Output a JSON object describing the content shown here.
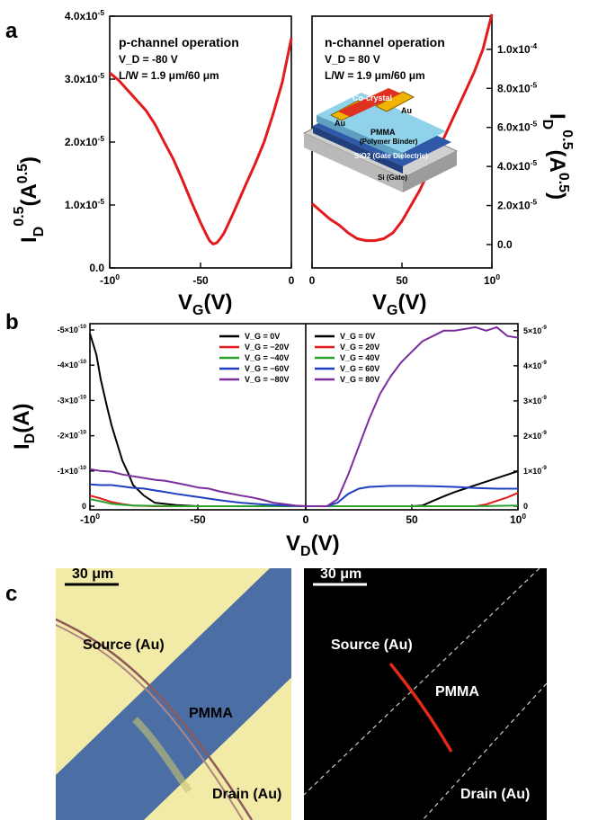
{
  "panels": {
    "a": "a",
    "b": "b",
    "c": "c"
  },
  "chart_data": [
    {
      "type": "line",
      "xlabel": "V_G (V)",
      "ylabel": "I_D^0.5 (A^0.5)",
      "xlim": [
        -100,
        0
      ],
      "ylim": [
        0,
        4e-05
      ],
      "x_ticks": [
        "-100",
        "-50",
        "0"
      ],
      "y_ticks": [
        "0.0",
        "1.0x10-5",
        "2.0x10-5",
        "3.0x10-5",
        "4.0x10-5"
      ],
      "title": "p-channel operation",
      "notes": [
        "V_D = -80 V",
        "L/W = 1.9 μm/60 μm"
      ],
      "color": "#e31a1c",
      "x": [
        -100,
        -95,
        -90,
        -85,
        -80,
        -75,
        -70,
        -65,
        -60,
        -55,
        -50,
        -47,
        -45,
        -43,
        -41,
        -39,
        -37,
        -35,
        -32,
        -30,
        -25,
        -20,
        -15,
        -10,
        -5,
        0
      ],
      "y": [
        3.1e-05,
        2.98e-05,
        2.82e-05,
        2.66e-05,
        2.5e-05,
        2.28e-05,
        2e-05,
        1.73e-05,
        1.4e-05,
        1.05e-05,
        7.2e-06,
        5.4e-06,
        4.3e-06,
        3.8e-06,
        4e-06,
        4.7e-06,
        5.6e-06,
        6.8e-06,
        8.7e-06,
        1e-05,
        1.33e-05,
        1.65e-05,
        2e-05,
        2.45e-05,
        2.95e-05,
        3.65e-05
      ]
    },
    {
      "type": "line",
      "xlabel": "V_G (V)",
      "ylabel": "I_D^0.5 (A^0.5)",
      "xlim": [
        0,
        100
      ],
      "ylim": [
        -1.2e-05,
        0.000117
      ],
      "x_ticks": [
        "0",
        "50",
        "100"
      ],
      "y_ticks": [
        "0.0",
        "2.0x10-5",
        "4.0x10-5",
        "6.0x10-5",
        "8.0x10-5",
        "1.0x10-4"
      ],
      "title": "n-channel operation",
      "notes": [
        "V_D = 80 V",
        "L/W = 1.9 μm/60 μm"
      ],
      "color": "#e31a1c",
      "x": [
        0,
        5,
        10,
        15,
        20,
        25,
        30,
        35,
        40,
        45,
        50,
        55,
        60,
        65,
        70,
        75,
        80,
        85,
        90,
        95,
        100
      ],
      "y": [
        2.1e-05,
        1.7e-05,
        1.3e-05,
        1e-05,
        6e-06,
        3e-06,
        2e-06,
        2e-06,
        3e-06,
        6e-06,
        1.2e-05,
        2e-05,
        2.8e-05,
        3.8e-05,
        4.8e-05,
        5.8e-05,
        6.8e-05,
        7.8e-05,
        8.8e-05,
        0.0001,
        0.000118
      ]
    },
    {
      "type": "line",
      "xlabel": "V_D (V)",
      "ylabel": "I_D (A)",
      "xlim": [
        -100,
        0
      ],
      "ylim": [
        0,
        -5e-10
      ],
      "x_ticks": [
        "-100",
        "-50",
        "0"
      ],
      "y_ticks": [
        "0",
        "-1×10-10",
        "-2×10-10",
        "-3×10-10",
        "-4×10-10",
        "-5×10-10"
      ],
      "legend": [
        "V_G = 0V",
        "V_G = −20V",
        "V_G = −40V",
        "V_G = −60V",
        "V_G = −80V"
      ],
      "series": [
        {
          "name": "V_G = 0V",
          "color": "#000000",
          "x": [
            -100,
            -97,
            -95,
            -92,
            -90,
            -87,
            -85,
            -82,
            -80,
            -75,
            -70,
            -60,
            -50,
            -30,
            0
          ],
          "y": [
            -4.9e-10,
            -4.3e-10,
            -3.6e-10,
            -2.8e-10,
            -2.3e-10,
            -1.7e-10,
            -1.3e-10,
            -9e-11,
            -6e-11,
            -3e-11,
            -1e-11,
            -3e-12,
            0,
            0,
            0
          ]
        },
        {
          "name": "V_G = −20V",
          "color": "#e31a1c",
          "x": [
            -100,
            -95,
            -90,
            -85,
            -80,
            -70,
            -60,
            -40,
            -20,
            0
          ],
          "y": [
            -3e-11,
            -2.2e-11,
            -1.2e-11,
            -6e-12,
            -2e-12,
            0,
            0,
            0,
            0,
            0
          ]
        },
        {
          "name": "V_G = −40V",
          "color": "#2ca02c",
          "x": [
            -100,
            -95,
            -90,
            -85,
            -80,
            -60,
            -40,
            -20,
            0
          ],
          "y": [
            -2e-11,
            -1.4e-11,
            -7e-12,
            -4e-12,
            -2e-12,
            0,
            0,
            0,
            0
          ]
        },
        {
          "name": "V_G = −60V",
          "color": "#1f3fbf",
          "x": [
            -100,
            -95,
            -90,
            -85,
            -80,
            -75,
            -70,
            -65,
            -60,
            -50,
            -40,
            -30,
            -20,
            -10,
            0
          ],
          "y": [
            -6.2e-11,
            -6e-11,
            -6e-11,
            -5.6e-11,
            -5.2e-11,
            -5e-11,
            -4.5e-11,
            -4e-11,
            -3.5e-11,
            -2.6e-11,
            -1.7e-11,
            -1e-11,
            -5e-12,
            -2e-12,
            0
          ]
        },
        {
          "name": "V_G = −80V",
          "color": "#7b2d9e",
          "x": [
            -100,
            -95,
            -90,
            -85,
            -80,
            -75,
            -70,
            -65,
            -60,
            -55,
            -50,
            -45,
            -40,
            -35,
            -30,
            -25,
            -20,
            -15,
            -10,
            -5,
            0
          ],
          "y": [
            -1.05e-10,
            -1e-10,
            -9.8e-11,
            -9e-11,
            -8.5e-11,
            -8e-11,
            -7.5e-11,
            -7.2e-11,
            -6.6e-11,
            -6e-11,
            -5.3e-11,
            -5e-11,
            -4.2e-11,
            -3.6e-11,
            -3e-11,
            -2.5e-11,
            -1.8e-11,
            -1e-11,
            -6e-12,
            -2e-12,
            0
          ]
        }
      ]
    },
    {
      "type": "line",
      "xlabel": "V_D (V)",
      "ylabel": "I_D (A)",
      "xlim": [
        0,
        100
      ],
      "ylim": [
        0,
        5.2e-09
      ],
      "x_ticks": [
        "0",
        "50",
        "100"
      ],
      "y_ticks": [
        "0",
        "1×10-9",
        "2×10-9",
        "3×10-9",
        "4×10-9",
        "5×10-9"
      ],
      "legend": [
        "V_G = 0V",
        "V_G = 20V",
        "V_G = 40V",
        "V_G = 60V",
        "V_G = 80V"
      ],
      "series": [
        {
          "name": "V_G = 0V",
          "color": "#000000",
          "x": [
            0,
            50,
            55,
            60,
            65,
            70,
            75,
            80,
            85,
            90,
            95,
            100
          ],
          "y": [
            0,
            0,
            2e-11,
            1.5e-10,
            2.8e-10,
            4e-10,
            5e-10,
            6e-10,
            7e-10,
            8e-10,
            9e-10,
            1e-09
          ]
        },
        {
          "name": "V_G = 20V",
          "color": "#e31a1c",
          "x": [
            0,
            80,
            85,
            90,
            95,
            100
          ],
          "y": [
            0,
            0,
            5e-11,
            1.5e-10,
            2.5e-10,
            3.8e-10
          ]
        },
        {
          "name": "V_G = 40V",
          "color": "#2ca02c",
          "x": [
            0,
            20,
            40,
            60,
            80,
            100
          ],
          "y": [
            0,
            0,
            0,
            0,
            0,
            2e-11
          ]
        },
        {
          "name": "V_G = 60V",
          "color": "#1f3fbf",
          "x": [
            0,
            10,
            15,
            20,
            25,
            30,
            40,
            50,
            60,
            70,
            80,
            90,
            100
          ],
          "y": [
            0,
            0,
            1e-10,
            3.5e-10,
            5e-10,
            5.5e-10,
            5.8e-10,
            5.8e-10,
            5.7e-10,
            5.5e-10,
            5.2e-10,
            5e-10,
            5e-10
          ]
        },
        {
          "name": "V_G = 80V",
          "color": "#7b2d9e",
          "x": [
            0,
            10,
            15,
            20,
            25,
            30,
            35,
            40,
            45,
            50,
            55,
            60,
            65,
            70,
            75,
            80,
            85,
            90,
            95,
            100
          ],
          "y": [
            0,
            0,
            2e-10,
            9e-10,
            1.7e-09,
            2.5e-09,
            3.2e-09,
            3.7e-09,
            4.1e-09,
            4.4e-09,
            4.7e-09,
            4.85e-09,
            5e-09,
            5e-09,
            5.05e-09,
            5.1e-09,
            5e-09,
            5.1e-09,
            4.85e-09,
            4.8e-09
          ]
        }
      ]
    }
  ],
  "inset": {
    "co_crystal": "Co-crystal",
    "au": "Au",
    "pmma": "PMMA",
    "binder": "(Polymer Binder)",
    "sio2": "SiO2 (Gate Dielectric)",
    "si": "Si (Gate)"
  },
  "micrographs": {
    "scale_bar": "30 μm",
    "source": "Source (Au)",
    "drain": "Drain (Au)",
    "pmma": "PMMA"
  },
  "colors": {
    "red": "#e31a1c",
    "pmma_blue": "#4a6fa0",
    "gold_bg": "#f2eba8"
  }
}
